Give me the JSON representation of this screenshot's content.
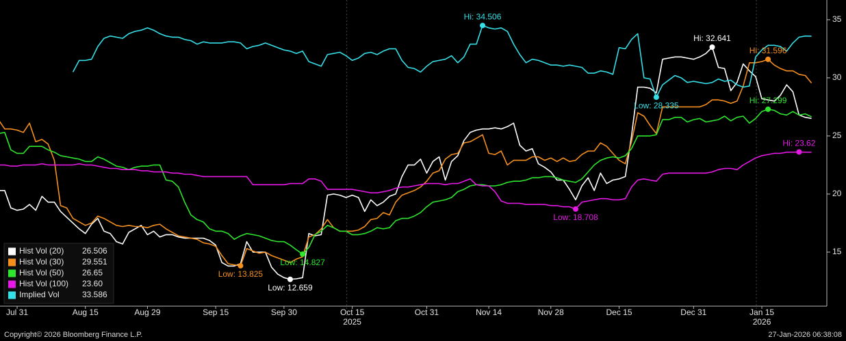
{
  "chart_data": {
    "type": "line",
    "categories": [
      null,
      null,
      null,
      "Jul 31",
      null,
      null,
      null,
      null,
      null,
      null,
      null,
      null,
      null,
      null,
      "Aug 15",
      null,
      null,
      null,
      null,
      null,
      null,
      null,
      null,
      null,
      "Aug 29",
      null,
      null,
      null,
      null,
      null,
      null,
      null,
      null,
      null,
      null,
      "Sep 15",
      null,
      null,
      null,
      null,
      null,
      null,
      null,
      null,
      null,
      null,
      "Sep 30",
      null,
      null,
      null,
      null,
      null,
      null,
      null,
      null,
      null,
      null,
      "Oct 15",
      null,
      null,
      null,
      null,
      null,
      null,
      null,
      null,
      null,
      null,
      null,
      "Oct 31",
      null,
      null,
      null,
      null,
      null,
      null,
      null,
      null,
      null,
      "Nov 14",
      null,
      null,
      null,
      null,
      null,
      null,
      null,
      null,
      null,
      "Nov 28",
      null,
      null,
      null,
      null,
      null,
      null,
      null,
      null,
      null,
      null,
      "Dec 15",
      null,
      null,
      null,
      null,
      null,
      null,
      null,
      null,
      null,
      null,
      null,
      "Dec 31",
      null,
      null,
      null,
      null,
      null,
      null,
      null,
      null,
      null,
      null,
      "Jan 15",
      null,
      null,
      null,
      null,
      null,
      null,
      null,
      null
    ],
    "category_years": [
      null,
      null,
      null,
      null,
      null,
      null,
      null,
      null,
      null,
      null,
      null,
      null,
      null,
      null,
      null,
      null,
      null,
      null,
      null,
      null,
      null,
      null,
      null,
      null,
      null,
      null,
      null,
      null,
      null,
      null,
      null,
      null,
      null,
      null,
      null,
      null,
      null,
      null,
      null,
      null,
      null,
      null,
      null,
      null,
      null,
      null,
      null,
      null,
      null,
      null,
      null,
      null,
      null,
      null,
      null,
      null,
      null,
      "2025",
      null,
      null,
      null,
      null,
      null,
      null,
      null,
      null,
      null,
      null,
      null,
      null,
      null,
      null,
      null,
      null,
      null,
      null,
      null,
      null,
      null,
      null,
      null,
      null,
      null,
      null,
      null,
      null,
      null,
      null,
      null,
      null,
      null,
      null,
      null,
      null,
      null,
      null,
      null,
      null,
      null,
      null,
      null,
      null,
      null,
      null,
      null,
      null,
      null,
      null,
      null,
      null,
      null,
      null,
      null,
      null,
      null,
      null,
      null,
      null,
      null,
      null,
      null,
      null,
      null,
      "2026",
      null,
      null,
      null,
      null,
      null,
      null,
      null,
      null
    ],
    "series": [
      {
        "name": "Hist Vol (20)",
        "color": "#ffffff",
        "last_value_label": "26.506",
        "hi_label": "Hi: 32.641",
        "low_label": "Low: 12.659",
        "values": [
          20.3,
          20.3,
          18.8,
          18.6,
          18.7,
          19.1,
          18.6,
          19.8,
          19.3,
          19.3,
          18.5,
          18.0,
          17.5,
          17.0,
          16.6,
          17.4,
          17.9,
          16.8,
          16.6,
          15.9,
          15.7,
          16.7,
          17.0,
          17.3,
          16.5,
          16.8,
          16.3,
          16.5,
          16.5,
          16.3,
          16.2,
          16.2,
          16.2,
          16.2,
          16.0,
          15.6,
          14.1,
          13.8,
          13.8,
          14.0,
          15.9,
          15.0,
          15.0,
          15.0,
          13.7,
          13.1,
          12.8,
          12.659,
          12.7,
          12.8,
          16.6,
          16.4,
          16.5,
          19.9,
          20.0,
          19.9,
          19.7,
          19.9,
          19.7,
          18.5,
          19.5,
          19.0,
          19.3,
          19.8,
          20.0,
          21.5,
          22.5,
          22.5,
          23.0,
          21.8,
          22.8,
          23.2,
          21.2,
          22.8,
          23.3,
          24.6,
          25.3,
          25.5,
          25.6,
          25.6,
          25.7,
          25.6,
          25.8,
          26.1,
          24.2,
          23.7,
          23.9,
          22.6,
          22.3,
          21.9,
          21.2,
          21.2,
          20.4,
          19.5,
          20.7,
          21.4,
          20.3,
          21.8,
          20.9,
          21.2,
          21.3,
          21.5,
          25.0,
          29.2,
          29.2,
          29.1,
          28.7,
          31.6,
          31.7,
          31.8,
          31.8,
          31.7,
          31.6,
          31.8,
          32.1,
          32.641,
          30.9,
          30.8,
          28.9,
          29.6,
          31.2,
          30.6,
          30.1,
          28.2,
          28.1,
          28.0,
          28.5,
          29.4,
          28.8,
          26.8,
          26.6,
          26.506
        ]
      },
      {
        "name": "Hist Vol (30)",
        "color": "#f5901f",
        "last_value_label": "29.551",
        "hi_label": "Hi: 31.596",
        "low_label": "Low: 13.825",
        "values": [
          26.4,
          25.6,
          25.6,
          25.5,
          25.3,
          26.1,
          24.5,
          24.7,
          24.3,
          22.9,
          19.0,
          18.8,
          17.9,
          17.6,
          17.3,
          17.5,
          18.1,
          17.9,
          17.6,
          17.3,
          17.2,
          17.3,
          17.2,
          17.2,
          17.1,
          17.3,
          17.4,
          17.0,
          16.7,
          16.4,
          16.3,
          16.2,
          16.1,
          15.8,
          15.7,
          15.5,
          14.7,
          14.0,
          13.9,
          13.825,
          15.3,
          15.1,
          14.9,
          15.0,
          14.7,
          14.5,
          14.3,
          14.1,
          14.4,
          14.6,
          16.3,
          16.5,
          17.0,
          17.8,
          17.1,
          16.8,
          16.8,
          16.8,
          16.9,
          17.2,
          17.8,
          17.9,
          18.4,
          18.2,
          19.3,
          19.9,
          20.1,
          20.3,
          20.6,
          21.1,
          21.8,
          22.0,
          23.0,
          23.4,
          23.5,
          24.4,
          24.5,
          24.8,
          25.1,
          23.5,
          23.4,
          23.7,
          22.5,
          22.9,
          22.9,
          22.9,
          23.2,
          23.2,
          22.9,
          23.1,
          22.8,
          23.1,
          22.8,
          22.9,
          23.4,
          23.7,
          23.7,
          24.4,
          24.1,
          23.5,
          22.9,
          22.6,
          24.5,
          27.0,
          26.7,
          25.9,
          25.2,
          27.5,
          27.5,
          27.5,
          27.5,
          27.5,
          27.5,
          27.5,
          27.7,
          28.1,
          28.1,
          28.0,
          27.8,
          28.0,
          29.3,
          31.3,
          31.3,
          31.4,
          31.596,
          31.1,
          30.8,
          30.6,
          30.6,
          30.3,
          30.2,
          29.551
        ]
      },
      {
        "name": "Hist Vol (50)",
        "color": "#2ee62e",
        "last_value_label": "26.65",
        "hi_label": "Hi: 27.299",
        "low_label": "Low: 14.827",
        "values": [
          25.2,
          25.3,
          23.8,
          23.5,
          23.5,
          24.1,
          24.1,
          24.1,
          23.8,
          23.6,
          23.3,
          23.2,
          23.1,
          23.0,
          22.8,
          22.8,
          23.2,
          23.0,
          22.7,
          22.4,
          22.3,
          22.1,
          22.3,
          22.4,
          22.4,
          22.5,
          22.5,
          21.2,
          21.1,
          20.6,
          19.3,
          18.2,
          17.8,
          17.6,
          17.0,
          16.8,
          16.8,
          16.6,
          16.1,
          16.4,
          16.6,
          16.5,
          16.4,
          16.2,
          16.0,
          15.9,
          15.9,
          15.6,
          15.2,
          14.827,
          15.4,
          16.5,
          16.8,
          17.3,
          17.1,
          16.8,
          16.8,
          16.5,
          16.5,
          16.6,
          16.8,
          17.1,
          17.0,
          17.1,
          17.7,
          17.9,
          17.9,
          18.1,
          18.4,
          18.9,
          19.3,
          19.4,
          19.5,
          19.7,
          20.2,
          20.4,
          20.7,
          20.8,
          20.8,
          20.7,
          20.7,
          20.8,
          21.0,
          21.1,
          21.1,
          21.2,
          21.4,
          21.4,
          21.5,
          21.5,
          21.4,
          21.2,
          21.1,
          21.0,
          21.3,
          21.9,
          22.5,
          22.9,
          23.1,
          23.2,
          23.1,
          23.3,
          23.9,
          25.0,
          25.0,
          25.0,
          25.1,
          26.4,
          26.4,
          26.6,
          26.6,
          26.2,
          26.4,
          26.5,
          26.2,
          26.3,
          26.4,
          26.7,
          26.3,
          26.6,
          26.7,
          26.1,
          26.5,
          27.1,
          27.299,
          27.2,
          26.9,
          26.8,
          27.1,
          26.8,
          26.9,
          26.65
        ]
      },
      {
        "name": "Hist Vol (100)",
        "color": "#e619e6",
        "last_value_label": "23.60",
        "hi_label": "Hi: 23.62",
        "low_label": "Low: 18.708",
        "values": [
          22.5,
          22.5,
          22.4,
          22.4,
          22.5,
          22.5,
          22.5,
          22.6,
          22.5,
          22.5,
          22.5,
          22.5,
          22.5,
          22.6,
          22.5,
          22.5,
          22.4,
          22.3,
          22.2,
          22.2,
          22.1,
          22.1,
          22.1,
          22.0,
          22.0,
          21.9,
          21.9,
          21.9,
          21.8,
          21.8,
          21.7,
          21.7,
          21.6,
          21.5,
          21.5,
          21.5,
          21.5,
          21.5,
          21.5,
          21.5,
          21.5,
          20.8,
          20.8,
          20.8,
          20.8,
          20.8,
          20.8,
          20.9,
          20.9,
          20.9,
          21.3,
          21.3,
          21.1,
          20.4,
          20.4,
          20.4,
          20.4,
          20.4,
          20.3,
          20.2,
          20.1,
          20.1,
          20.2,
          20.3,
          20.5,
          20.6,
          20.6,
          20.7,
          20.8,
          20.9,
          20.9,
          20.9,
          20.8,
          20.9,
          20.9,
          21.1,
          21.3,
          20.8,
          20.7,
          20.7,
          20.2,
          19.4,
          19.2,
          19.2,
          19.2,
          19.1,
          19.1,
          19.1,
          19.1,
          19.0,
          19.0,
          18.9,
          18.9,
          18.708,
          19.3,
          19.4,
          19.5,
          19.6,
          19.6,
          19.5,
          19.5,
          19.6,
          20.6,
          21.2,
          21.3,
          21.2,
          21.1,
          21.7,
          21.8,
          21.8,
          21.8,
          21.8,
          21.8,
          21.8,
          21.8,
          21.9,
          22.1,
          22.2,
          22.2,
          22.1,
          22.5,
          22.8,
          23.1,
          23.3,
          23.4,
          23.5,
          23.5,
          23.6,
          23.6,
          23.62,
          23.6,
          23.6
        ]
      },
      {
        "name": "Implied Vol",
        "color": "#35e0e8",
        "last_value_label": "33.586",
        "hi_label": "Hi: 34.506",
        "low_label": "Low: 28.335",
        "values": [
          null,
          null,
          null,
          null,
          null,
          null,
          null,
          null,
          null,
          null,
          null,
          null,
          30.5,
          31.5,
          31.5,
          31.6,
          32.7,
          33.4,
          33.6,
          33.5,
          33.4,
          33.8,
          34.0,
          34.1,
          34.3,
          34.1,
          33.8,
          33.6,
          33.5,
          33.5,
          33.3,
          33.2,
          32.9,
          33.1,
          33.0,
          33.0,
          33.0,
          33.1,
          33.1,
          33.0,
          32.5,
          32.7,
          32.8,
          33.0,
          32.8,
          32.6,
          32.4,
          32.3,
          32.1,
          32.3,
          31.4,
          31.2,
          31.0,
          32.0,
          32.1,
          32.2,
          31.9,
          31.5,
          31.7,
          32.1,
          32.2,
          32.0,
          32.3,
          32.5,
          32.5,
          31.5,
          30.9,
          30.8,
          30.5,
          31.0,
          31.4,
          31.5,
          31.6,
          31.9,
          31.3,
          31.8,
          32.9,
          32.9,
          34.506,
          34.3,
          34.2,
          34.3,
          34.0,
          32.9,
          32.0,
          31.3,
          31.6,
          31.5,
          31.3,
          31.1,
          31.1,
          31.0,
          31.1,
          31.0,
          30.9,
          30.4,
          30.4,
          30.6,
          30.5,
          30.3,
          32.6,
          32.5,
          33.3,
          33.8,
          30.0,
          29.9,
          28.335,
          29.4,
          29.8,
          30.2,
          30.0,
          29.6,
          29.7,
          29.6,
          29.5,
          29.6,
          29.9,
          29.7,
          29.8,
          29.4,
          29.2,
          29.3,
          31.8,
          32.4,
          32.8,
          32.8,
          32.7,
          32.3,
          33.0,
          33.5,
          33.6,
          33.586
        ]
      }
    ],
    "ylim": [
      10.35,
      36.7
    ],
    "yticks": [
      15,
      20,
      25,
      30,
      35
    ],
    "y_axis_side": "right",
    "grid": false,
    "legend": "bottom-left",
    "footer_left": "Copyright© 2026 Bloomberg Finance L.P.",
    "footer_right": "27-Jan-2026 06:38:08"
  }
}
